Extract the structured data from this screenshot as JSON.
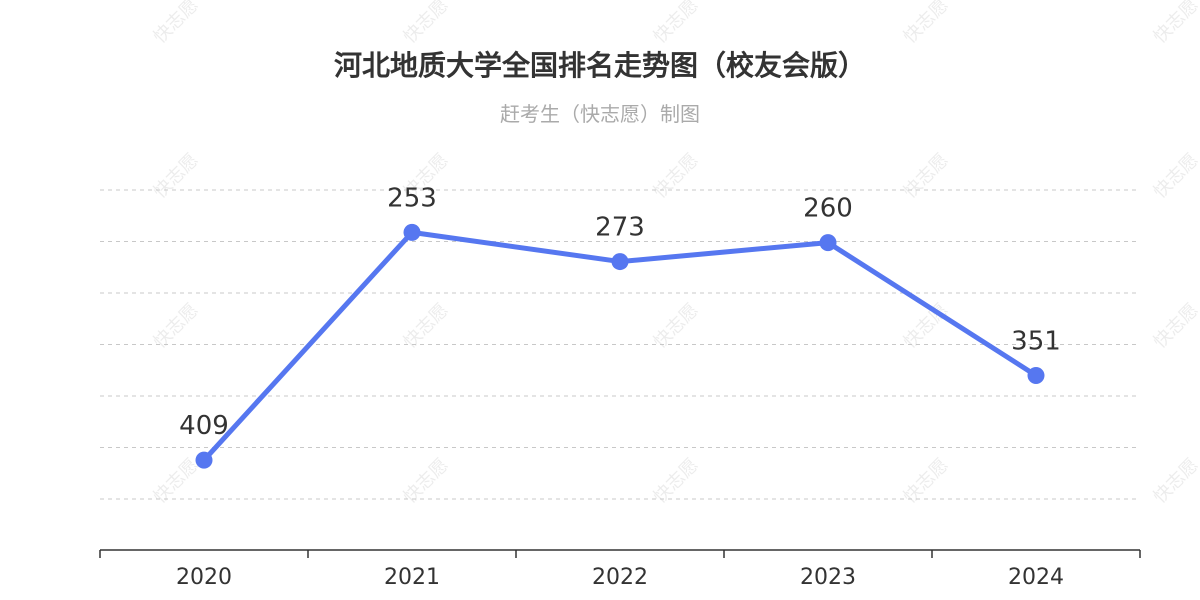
{
  "watermark_text": "快志愿",
  "chart_data": {
    "type": "line",
    "title": "河北地质大学全国排名走势图（校友会版）",
    "subtitle": "赶考生（快志愿）制图",
    "categories": [
      "2020",
      "2021",
      "2022",
      "2023",
      "2024"
    ],
    "values": [
      409,
      253,
      273,
      260,
      351
    ],
    "y_inverted": true,
    "ylim": [
      200,
      450
    ],
    "xlabel": "",
    "ylabel": "",
    "grid": true,
    "line_color": "#5677f0",
    "marker_color": "#5677f0"
  }
}
